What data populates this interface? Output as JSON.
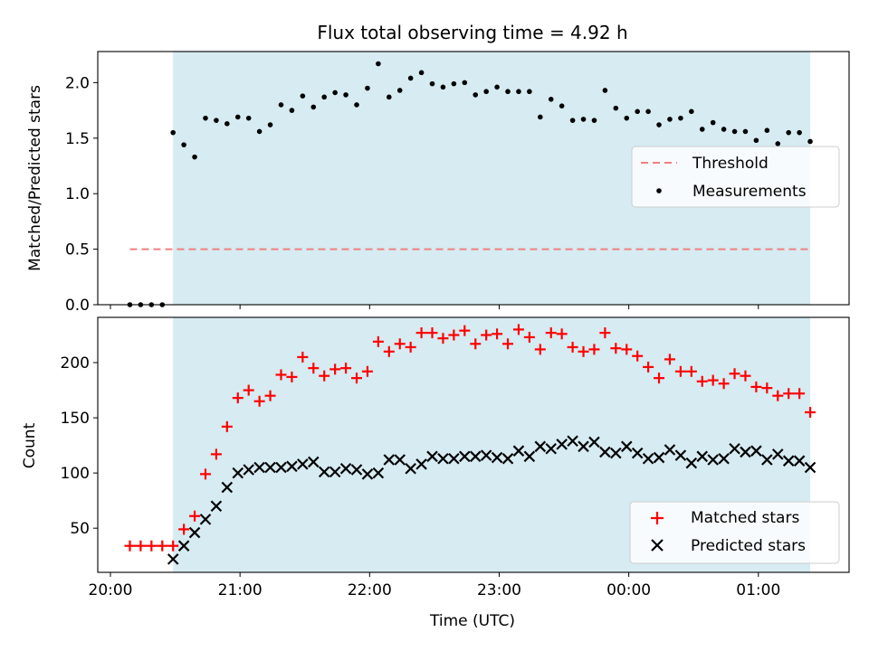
{
  "figure": {
    "title": "Flux total observing time = 4.92 h"
  },
  "colors": {
    "shade": "#add8e6",
    "threshold": "#f08080",
    "matched": "#ff0000",
    "predicted": "#000000",
    "measurement": "#000000"
  },
  "chart_data": [
    {
      "type": "scatter",
      "panel": "top",
      "ylabel": "Matched/Predicted stars",
      "xlabel": "",
      "xlim": [
        "20:00",
        "01:42"
      ],
      "ylim": [
        0,
        2.28
      ],
      "yticks": [
        "0.0",
        "0.5",
        "1.0",
        "1.5",
        "2.0"
      ],
      "shaded_span": [
        "20:29",
        "01:24"
      ],
      "legend_position": "right",
      "threshold": {
        "name": "Threshold",
        "value": 0.5,
        "x_range": [
          "20:09",
          "01:24"
        ]
      },
      "series": [
        {
          "name": "Measurements",
          "points": [
            [
              "20:09",
              0.0
            ],
            [
              "20:14",
              0.0
            ],
            [
              "20:19",
              0.0
            ],
            [
              "20:24",
              0.0
            ],
            [
              "20:29",
              1.55
            ],
            [
              "20:34",
              1.44
            ],
            [
              "20:39",
              1.33
            ],
            [
              "20:44",
              1.68
            ],
            [
              "20:49",
              1.66
            ],
            [
              "20:54",
              1.63
            ],
            [
              "20:59",
              1.69
            ],
            [
              "21:04",
              1.68
            ],
            [
              "21:09",
              1.56
            ],
            [
              "21:14",
              1.62
            ],
            [
              "21:19",
              1.8
            ],
            [
              "21:24",
              1.75
            ],
            [
              "21:29",
              1.88
            ],
            [
              "21:34",
              1.78
            ],
            [
              "21:39",
              1.87
            ],
            [
              "21:44",
              1.91
            ],
            [
              "21:49",
              1.89
            ],
            [
              "21:54",
              1.8
            ],
            [
              "21:59",
              1.95
            ],
            [
              "22:04",
              2.17
            ],
            [
              "22:09",
              1.87
            ],
            [
              "22:14",
              1.93
            ],
            [
              "22:19",
              2.04
            ],
            [
              "22:24",
              2.09
            ],
            [
              "22:29",
              1.99
            ],
            [
              "22:34",
              1.96
            ],
            [
              "22:39",
              1.99
            ],
            [
              "22:44",
              2.0
            ],
            [
              "22:49",
              1.89
            ],
            [
              "22:54",
              1.92
            ],
            [
              "22:59",
              1.96
            ],
            [
              "23:04",
              1.92
            ],
            [
              "23:09",
              1.92
            ],
            [
              "23:14",
              1.92
            ],
            [
              "23:19",
              1.69
            ],
            [
              "23:24",
              1.85
            ],
            [
              "23:29",
              1.79
            ],
            [
              "23:34",
              1.66
            ],
            [
              "23:39",
              1.67
            ],
            [
              "23:44",
              1.66
            ],
            [
              "23:49",
              1.93
            ],
            [
              "23:54",
              1.77
            ],
            [
              "23:59",
              1.68
            ],
            [
              "00:04",
              1.74
            ],
            [
              "00:09",
              1.74
            ],
            [
              "00:14",
              1.62
            ],
            [
              "00:19",
              1.67
            ],
            [
              "00:24",
              1.68
            ],
            [
              "00:29",
              1.74
            ],
            [
              "00:34",
              1.58
            ],
            [
              "00:39",
              1.64
            ],
            [
              "00:44",
              1.58
            ],
            [
              "00:49",
              1.56
            ],
            [
              "00:54",
              1.56
            ],
            [
              "00:59",
              1.48
            ],
            [
              "01:04",
              1.57
            ],
            [
              "01:09",
              1.45
            ],
            [
              "01:14",
              1.55
            ],
            [
              "01:19",
              1.55
            ],
            [
              "01:24",
              1.47
            ]
          ]
        }
      ]
    },
    {
      "type": "scatter",
      "panel": "bottom",
      "ylabel": "Count",
      "xlabel": "Time (UTC)",
      "xlim": [
        "20:00",
        "01:42"
      ],
      "ylim": [
        10,
        241
      ],
      "yticks": [
        "50",
        "100",
        "150",
        "200"
      ],
      "xticks": [
        "20:00",
        "21:00",
        "22:00",
        "23:00",
        "00:00",
        "01:00"
      ],
      "shaded_span": [
        "20:29",
        "01:24"
      ],
      "legend_position": "lower right",
      "series": [
        {
          "name": "Matched stars",
          "marker": "+",
          "points": [
            [
              "20:09",
              34
            ],
            [
              "20:14",
              34
            ],
            [
              "20:19",
              34
            ],
            [
              "20:24",
              34
            ],
            [
              "20:29",
              34
            ],
            [
              "20:34",
              49
            ],
            [
              "20:39",
              61
            ],
            [
              "20:44",
              99
            ],
            [
              "20:49",
              117
            ],
            [
              "20:54",
              142
            ],
            [
              "20:59",
              168
            ],
            [
              "21:04",
              175
            ],
            [
              "21:09",
              165
            ],
            [
              "21:14",
              170
            ],
            [
              "21:19",
              189
            ],
            [
              "21:24",
              187
            ],
            [
              "21:29",
              205
            ],
            [
              "21:34",
              195
            ],
            [
              "21:39",
              188
            ],
            [
              "21:44",
              194
            ],
            [
              "21:49",
              195
            ],
            [
              "21:54",
              186
            ],
            [
              "21:59",
              192
            ],
            [
              "22:04",
              219
            ],
            [
              "22:09",
              210
            ],
            [
              "22:14",
              217
            ],
            [
              "22:19",
              214
            ],
            [
              "22:24",
              227
            ],
            [
              "22:29",
              227
            ],
            [
              "22:34",
              222
            ],
            [
              "22:39",
              225
            ],
            [
              "22:44",
              229
            ],
            [
              "22:49",
              217
            ],
            [
              "22:54",
              225
            ],
            [
              "22:59",
              226
            ],
            [
              "23:04",
              217
            ],
            [
              "23:09",
              230
            ],
            [
              "23:14",
              223
            ],
            [
              "23:19",
              212
            ],
            [
              "23:24",
              227
            ],
            [
              "23:29",
              226
            ],
            [
              "23:34",
              214
            ],
            [
              "23:39",
              210
            ],
            [
              "23:44",
              212
            ],
            [
              "23:49",
              227
            ],
            [
              "23:54",
              213
            ],
            [
              "23:59",
              212
            ],
            [
              "00:04",
              206
            ],
            [
              "00:09",
              196
            ],
            [
              "00:14",
              186
            ],
            [
              "00:19",
              203
            ],
            [
              "00:24",
              192
            ],
            [
              "00:29",
              192
            ],
            [
              "00:34",
              183
            ],
            [
              "00:39",
              184
            ],
            [
              "00:44",
              181
            ],
            [
              "00:49",
              190
            ],
            [
              "00:54",
              188
            ],
            [
              "00:59",
              178
            ],
            [
              "01:04",
              177
            ],
            [
              "01:09",
              170
            ],
            [
              "01:14",
              172
            ],
            [
              "01:19",
              172
            ],
            [
              "01:24",
              155
            ]
          ]
        },
        {
          "name": "Predicted stars",
          "marker": "x",
          "points": [
            [
              "20:29",
              22
            ],
            [
              "20:34",
              34
            ],
            [
              "20:39",
              46
            ],
            [
              "20:44",
              58
            ],
            [
              "20:49",
              70
            ],
            [
              "20:54",
              87
            ],
            [
              "20:59",
              100
            ],
            [
              "21:04",
              103
            ],
            [
              "21:09",
              105
            ],
            [
              "21:14",
              105
            ],
            [
              "21:19",
              105
            ],
            [
              "21:24",
              106
            ],
            [
              "21:29",
              108
            ],
            [
              "21:34",
              110
            ],
            [
              "21:39",
              101
            ],
            [
              "21:44",
              101
            ],
            [
              "21:49",
              104
            ],
            [
              "21:54",
              103
            ],
            [
              "21:59",
              99
            ],
            [
              "22:04",
              100
            ],
            [
              "22:09",
              112
            ],
            [
              "22:14",
              112
            ],
            [
              "22:19",
              104
            ],
            [
              "22:24",
              108
            ],
            [
              "22:29",
              115
            ],
            [
              "22:34",
              113
            ],
            [
              "22:39",
              113
            ],
            [
              "22:44",
              115
            ],
            [
              "22:49",
              115
            ],
            [
              "22:54",
              116
            ],
            [
              "22:59",
              114
            ],
            [
              "23:04",
              113
            ],
            [
              "23:09",
              120
            ],
            [
              "23:14",
              115
            ],
            [
              "23:19",
              124
            ],
            [
              "23:24",
              122
            ],
            [
              "23:29",
              126
            ],
            [
              "23:34",
              129
            ],
            [
              "23:39",
              124
            ],
            [
              "23:44",
              128
            ],
            [
              "23:49",
              119
            ],
            [
              "23:54",
              118
            ],
            [
              "23:59",
              124
            ],
            [
              "00:04",
              118
            ],
            [
              "00:09",
              113
            ],
            [
              "00:14",
              114
            ],
            [
              "00:19",
              121
            ],
            [
              "00:24",
              116
            ],
            [
              "00:29",
              109
            ],
            [
              "00:34",
              115
            ],
            [
              "00:39",
              112
            ],
            [
              "00:44",
              113
            ],
            [
              "00:49",
              122
            ],
            [
              "00:54",
              119
            ],
            [
              "00:59",
              120
            ],
            [
              "01:04",
              112
            ],
            [
              "01:09",
              117
            ],
            [
              "01:14",
              111
            ],
            [
              "01:19",
              111
            ],
            [
              "01:24",
              105
            ]
          ]
        }
      ]
    }
  ]
}
